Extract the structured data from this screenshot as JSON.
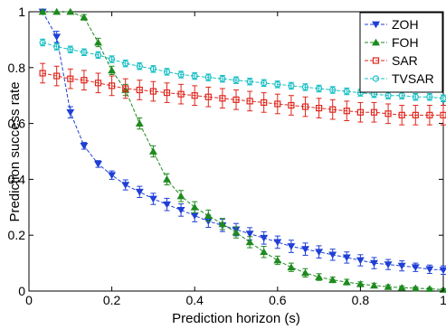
{
  "chart_data": {
    "type": "line",
    "xlabel": "Prediction horizon (s)",
    "ylabel": "Prediction success rate",
    "xlim": [
      0,
      1
    ],
    "ylim": [
      0,
      1
    ],
    "x_ticks": [
      0,
      0.2,
      0.4,
      0.6,
      0.8,
      1
    ],
    "x_tick_labels": [
      "0",
      "0.2",
      "0.4",
      "0.6",
      "0.8",
      "1"
    ],
    "y_ticks": [
      0,
      0.2,
      0.4,
      0.6,
      0.8,
      1
    ],
    "y_tick_labels": [
      "0",
      "0.2",
      "0.4",
      "0.6",
      "0.8",
      "1"
    ],
    "grid": false,
    "legend_position": "top-right",
    "x": [
      0.033,
      0.067,
      0.1,
      0.133,
      0.167,
      0.2,
      0.233,
      0.267,
      0.3,
      0.333,
      0.367,
      0.4,
      0.433,
      0.467,
      0.5,
      0.533,
      0.567,
      0.6,
      0.633,
      0.667,
      0.7,
      0.733,
      0.767,
      0.8,
      0.833,
      0.867,
      0.9,
      0.933,
      0.967,
      1.0
    ],
    "series": [
      {
        "name": "ZOH",
        "color": "#1f3fd6",
        "marker": "triangle-down",
        "values": [
          1.0,
          0.91,
          0.64,
          0.52,
          0.455,
          0.415,
          0.38,
          0.355,
          0.33,
          0.31,
          0.29,
          0.27,
          0.25,
          0.235,
          0.22,
          0.205,
          0.19,
          0.175,
          0.16,
          0.15,
          0.14,
          0.13,
          0.12,
          0.11,
          0.1,
          0.095,
          0.09,
          0.085,
          0.078,
          0.075
        ],
        "errors": [
          0.0,
          0.02,
          0.02,
          0.012,
          0.012,
          0.015,
          0.018,
          0.02,
          0.02,
          0.022,
          0.022,
          0.022,
          0.022,
          0.022,
          0.022,
          0.022,
          0.022,
          0.022,
          0.022,
          0.022,
          0.022,
          0.02,
          0.02,
          0.02,
          0.02,
          0.018,
          0.018,
          0.015,
          0.015,
          0.015
        ]
      },
      {
        "name": "FOH",
        "color": "#1e8a1e",
        "marker": "triangle-up",
        "values": [
          1.0,
          1.0,
          1.0,
          0.98,
          0.89,
          0.79,
          0.72,
          0.6,
          0.5,
          0.4,
          0.34,
          0.3,
          0.27,
          0.24,
          0.21,
          0.175,
          0.14,
          0.11,
          0.085,
          0.065,
          0.05,
          0.04,
          0.032,
          0.025,
          0.02,
          0.015,
          0.012,
          0.01,
          0.008,
          0.005
        ],
        "errors": [
          0.0,
          0.0,
          0.0,
          0.01,
          0.015,
          0.015,
          0.02,
          0.02,
          0.02,
          0.02,
          0.02,
          0.02,
          0.02,
          0.02,
          0.02,
          0.02,
          0.02,
          0.015,
          0.015,
          0.015,
          0.012,
          0.01,
          0.01,
          0.008,
          0.008,
          0.007,
          0.006,
          0.005,
          0.004,
          0.003
        ]
      },
      {
        "name": "SAR",
        "color": "#e0261c",
        "marker": "square",
        "values": [
          0.78,
          0.77,
          0.76,
          0.755,
          0.745,
          0.735,
          0.725,
          0.72,
          0.715,
          0.71,
          0.705,
          0.7,
          0.695,
          0.69,
          0.685,
          0.68,
          0.675,
          0.67,
          0.665,
          0.66,
          0.655,
          0.65,
          0.645,
          0.64,
          0.64,
          0.635,
          0.63,
          0.63,
          0.63,
          0.63
        ],
        "errors": [
          0.035,
          0.035,
          0.035,
          0.035,
          0.035,
          0.035,
          0.035,
          0.035,
          0.035,
          0.035,
          0.035,
          0.035,
          0.035,
          0.035,
          0.035,
          0.035,
          0.035,
          0.035,
          0.035,
          0.035,
          0.035,
          0.035,
          0.035,
          0.035,
          0.035,
          0.035,
          0.035,
          0.035,
          0.035,
          0.035
        ]
      },
      {
        "name": "TVSAR",
        "color": "#17bfc4",
        "marker": "circle",
        "values": [
          0.89,
          0.875,
          0.865,
          0.855,
          0.845,
          0.83,
          0.815,
          0.805,
          0.795,
          0.785,
          0.775,
          0.77,
          0.765,
          0.76,
          0.755,
          0.75,
          0.745,
          0.74,
          0.735,
          0.73,
          0.725,
          0.72,
          0.715,
          0.71,
          0.705,
          0.7,
          0.7,
          0.695,
          0.695,
          0.69
        ],
        "errors": [
          0.012,
          0.012,
          0.012,
          0.012,
          0.012,
          0.012,
          0.012,
          0.012,
          0.012,
          0.012,
          0.012,
          0.012,
          0.012,
          0.012,
          0.012,
          0.012,
          0.012,
          0.012,
          0.012,
          0.012,
          0.012,
          0.012,
          0.012,
          0.012,
          0.012,
          0.012,
          0.012,
          0.012,
          0.012,
          0.012
        ]
      }
    ]
  }
}
